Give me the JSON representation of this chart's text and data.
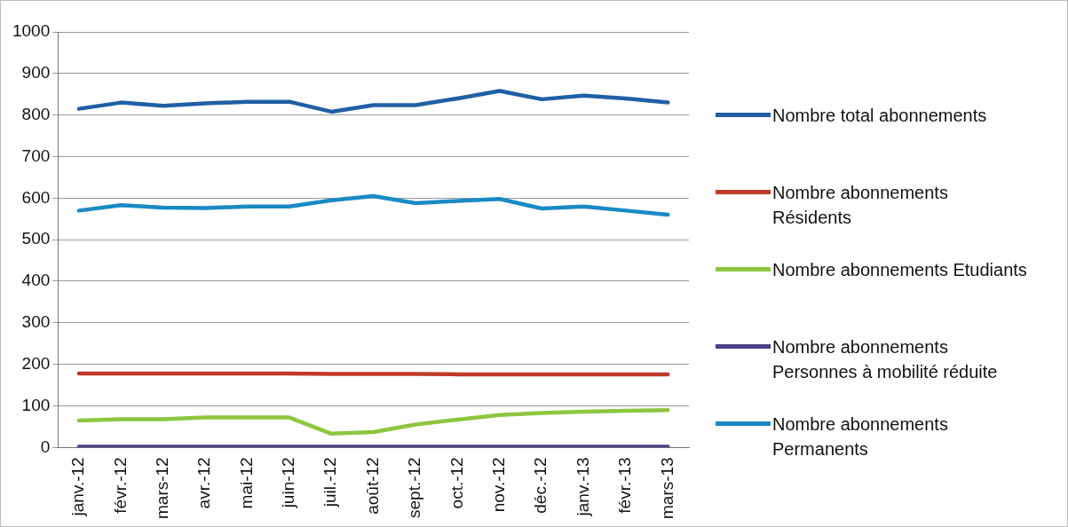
{
  "chart_data": {
    "type": "line",
    "categories": [
      "janv.-12",
      "févr.-12",
      "mars-12",
      "avr.-12",
      "mai-12",
      "juin-12",
      "juil.-12",
      "août-12",
      "sept.-12",
      "oct.-12",
      "nov.-12",
      "déc.-12",
      "janv.-13",
      "févr.-13",
      "mars-13"
    ],
    "series": [
      {
        "name": "Nombre total abonnements",
        "color": "#1f5fa6",
        "values": [
          815,
          830,
          822,
          828,
          832,
          832,
          808,
          824,
          824,
          840,
          858,
          838,
          847,
          840,
          830
        ]
      },
      {
        "name": "Nombre abonnements Résidents",
        "color": "#c0392b",
        "values": [
          178,
          178,
          178,
          178,
          178,
          178,
          177,
          177,
          177,
          176,
          176,
          176,
          176,
          176,
          176
        ]
      },
      {
        "name": "Nombre abonnements Etudiants",
        "color": "#8dc63f",
        "values": [
          65,
          68,
          68,
          72,
          72,
          72,
          33,
          37,
          55,
          67,
          78,
          83,
          86,
          88,
          90
        ]
      },
      {
        "name": "Nombre abonnements Personnes à mobilité réduite",
        "color": "#4b3f8c",
        "values": [
          2,
          2,
          2,
          2,
          2,
          2,
          2,
          2,
          2,
          2,
          2,
          2,
          2,
          2,
          2
        ]
      },
      {
        "name": "Nombre abonnements Permanents",
        "color": "#1a8ac4",
        "values": [
          570,
          583,
          577,
          576,
          580,
          580,
          595,
          605,
          588,
          593,
          598,
          575,
          580,
          570,
          560
        ]
      }
    ],
    "ylim": [
      0,
      1000
    ],
    "yticks": [
      0,
      100,
      200,
      300,
      400,
      500,
      600,
      700,
      800,
      900,
      1000
    ],
    "grid": "y",
    "legend": "right",
    "marker": "none",
    "line_style": "solid"
  }
}
